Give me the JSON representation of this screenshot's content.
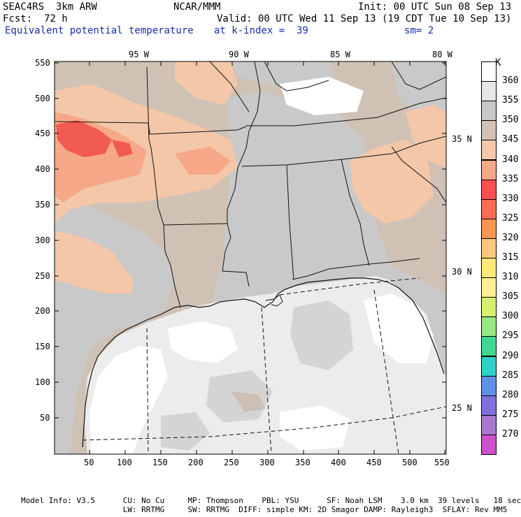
{
  "header": {
    "model": "SEAC4RS  3km ARW",
    "org": "NCAR/MMM",
    "init": "Init: 00 UTC Sun 08 Sep 13",
    "fcst": "Fcst:  72 h",
    "valid": "Valid: 00 UTC Wed 11 Sep 13 (19 CDT Tue 10 Sep 13)",
    "field": "Equivalent potential temperature",
    "level": "at k-index =  39",
    "smooth": "sm= 2"
  },
  "map": {
    "top_lon_labels": [
      "95 W",
      "90 W",
      "85 W",
      "80 W"
    ],
    "right_lat_labels": [
      "35 N",
      "30 N",
      "25 N"
    ],
    "y_ticks": [
      "550",
      "500",
      "450",
      "400",
      "350",
      "300",
      "250",
      "200",
      "150",
      "100",
      "50"
    ],
    "x_ticks": [
      "50",
      "100",
      "150",
      "200",
      "250",
      "300",
      "350",
      "400",
      "450",
      "500",
      "550"
    ]
  },
  "colorbar": {
    "unit": "K",
    "levels": [
      "360",
      "355",
      "350",
      "345",
      "340",
      "335",
      "330",
      "325",
      "320",
      "315",
      "310",
      "305",
      "300",
      "295",
      "290",
      "285",
      "280",
      "275",
      "270"
    ],
    "colors": [
      "#ffffff",
      "#e6e6e6",
      "#c8c8c8",
      "#d2c2b4",
      "#f6c8a8",
      "#f8a888",
      "#ff5050",
      "#ff6e50",
      "#ff9650",
      "#ffc878",
      "#ffe878",
      "#fff090",
      "#d8f070",
      "#98e880",
      "#40d890",
      "#30d0c8",
      "#6090e8",
      "#8070e0",
      "#a878d0",
      "#d050d0"
    ]
  },
  "model_info": {
    "line1": "Model Info: V3.5      CU: No Cu     MP: Thompson    PBL: YSU      SF: Noah LSM    3.0 km  39 levels   18 sec",
    "line2": "                      LW: RRTMG     SW: RRTMG  DIFF: simple KM: 2D Smagor DAMP: Rayleigh3  SFLAY: Rev MM5"
  }
}
